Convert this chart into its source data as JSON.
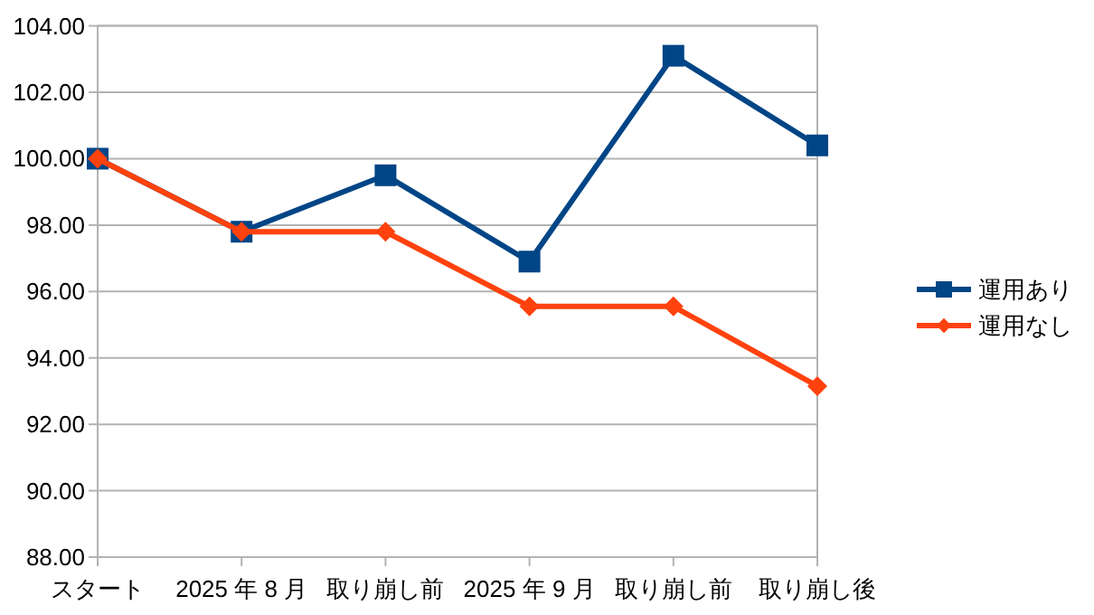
{
  "chart_data": {
    "type": "line",
    "categories": [
      "スタート",
      "2025 年 8 月",
      "取り崩し前",
      "2025 年 9 月",
      "取り崩し前",
      "取り崩し後"
    ],
    "series": [
      {
        "name": "運用あり",
        "color": "#004586",
        "marker": "square",
        "values": [
          100.0,
          97.8,
          99.5,
          96.9,
          103.1,
          100.4
        ]
      },
      {
        "name": "運用なし",
        "color": "#ff420e",
        "marker": "diamond",
        "values": [
          100.0,
          97.8,
          97.8,
          95.55,
          95.55,
          93.15
        ]
      }
    ],
    "ylim": [
      88,
      104
    ],
    "yticks": [
      {
        "value": 88,
        "label": "88.00"
      },
      {
        "value": 90,
        "label": "90.00"
      },
      {
        "value": 92,
        "label": "92.00"
      },
      {
        "value": 94,
        "label": "94.00"
      },
      {
        "value": 96,
        "label": "96.00"
      },
      {
        "value": 98,
        "label": "98.00"
      },
      {
        "value": 100,
        "label": "100.00"
      },
      {
        "value": 102,
        "label": "102.00"
      },
      {
        "value": 104,
        "label": "104.00"
      }
    ],
    "grid": "y",
    "legend": "right",
    "line_style": "solid"
  }
}
